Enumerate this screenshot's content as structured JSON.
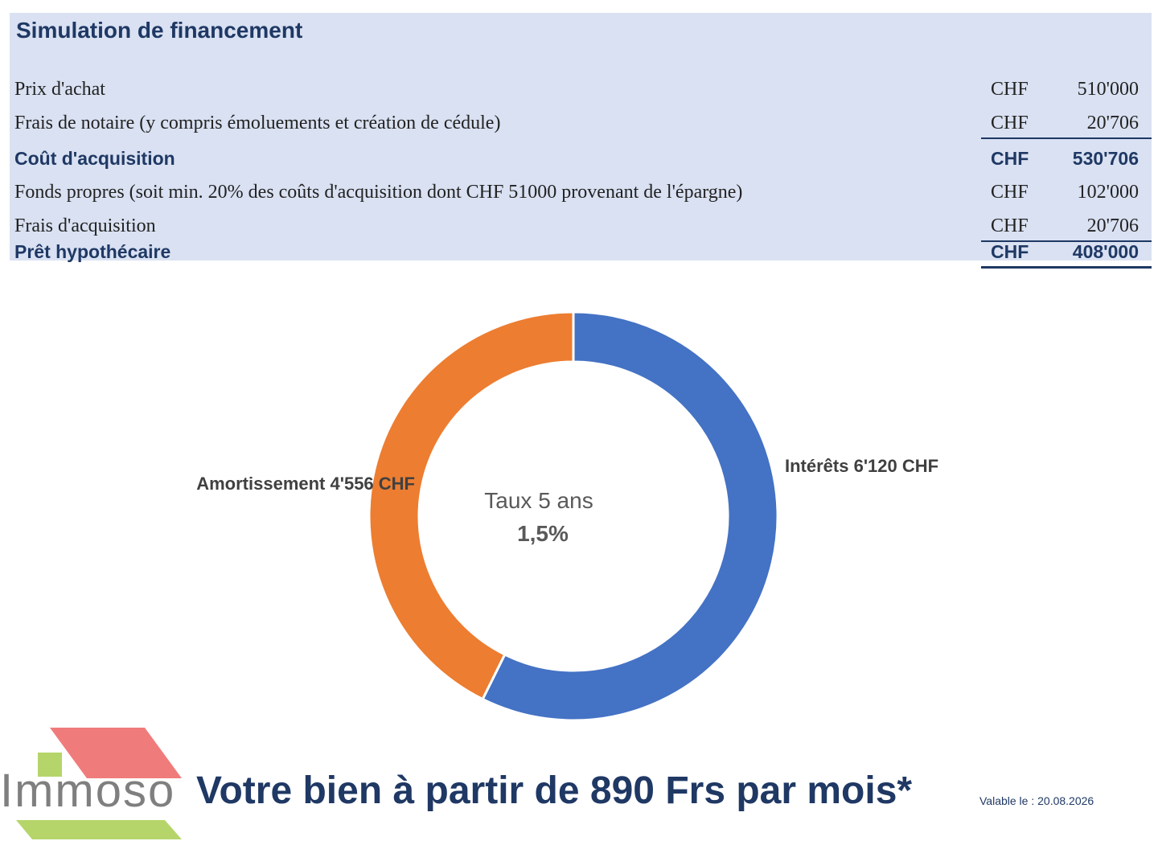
{
  "simulation": {
    "title": "Simulation de financement",
    "rows": [
      {
        "label": "Prix d'achat",
        "currency": "CHF",
        "amount": "510'000",
        "bold": false
      },
      {
        "label": "Frais de notaire (y compris émoluements et création de cédule)",
        "currency": "CHF",
        "amount": "20'706",
        "bold": false
      },
      {
        "label": "Coût d'acquisition",
        "currency": "CHF",
        "amount": "530'706",
        "bold": true
      },
      {
        "label": "Fonds propres (soit min. 20% des coûts d'acquisition dont CHF 51000 provenant de l'épargne)",
        "currency": "CHF",
        "amount": "102'000",
        "bold": false
      },
      {
        "label": "Frais d'acquisition",
        "currency": "CHF",
        "amount": "20'706",
        "bold": false
      },
      {
        "label": "Prêt hypothécaire",
        "currency": "CHF",
        "amount": "408'000",
        "bold": true
      }
    ]
  },
  "chart_data": {
    "type": "pie",
    "title": "",
    "center_label": [
      "Taux 5 ans",
      "1,5%"
    ],
    "slices": [
      {
        "name": "Intérêts",
        "value": 6120,
        "label": "Intérêts  6'120  CHF",
        "color": "#4472c4"
      },
      {
        "name": "Amortissement",
        "value": 4556,
        "label": "Amortissement  4'556  CHF",
        "color": "#ed7d31"
      }
    ]
  },
  "logo": {
    "text": "Immoso"
  },
  "tagline": "Votre bien à partir de 890 Frs par mois*",
  "validity": "Valable le : 20.08.2026"
}
